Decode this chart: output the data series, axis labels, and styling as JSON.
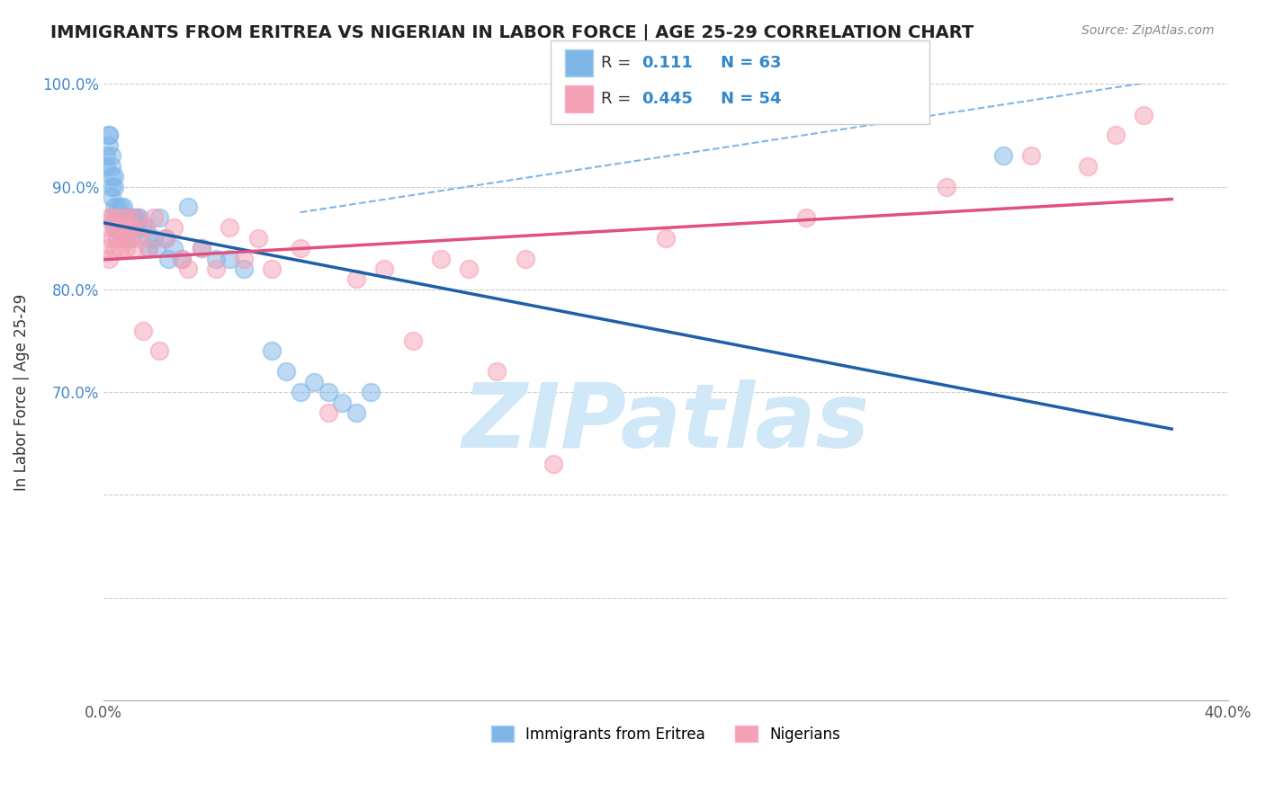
{
  "title": "IMMIGRANTS FROM ERITREA VS NIGERIAN IN LABOR FORCE | AGE 25-29 CORRELATION CHART",
  "source_text": "Source: ZipAtlas.com",
  "ylabel": "In Labor Force | Age 25-29",
  "xlim": [
    0.0,
    0.4
  ],
  "ylim": [
    0.4,
    1.0
  ],
  "blue_color": "#7EB6E8",
  "pink_color": "#F4A0B5",
  "blue_line_color": "#1E5FA8",
  "pink_line_color": "#E05080",
  "dashed_line_color": "#7EB6E8",
  "watermark_text": "ZIPatlas",
  "watermark_color": "#D0E8F8",
  "R_eritrea": 0.111,
  "N_eritrea": 63,
  "R_nigerian": 0.445,
  "N_nigerian": 54,
  "eritrea_x": [
    0.001,
    0.001,
    0.002,
    0.002,
    0.002,
    0.003,
    0.003,
    0.003,
    0.003,
    0.003,
    0.004,
    0.004,
    0.004,
    0.004,
    0.004,
    0.005,
    0.005,
    0.005,
    0.005,
    0.006,
    0.006,
    0.006,
    0.007,
    0.007,
    0.007,
    0.008,
    0.008,
    0.008,
    0.009,
    0.009,
    0.01,
    0.01,
    0.01,
    0.011,
    0.011,
    0.012,
    0.012,
    0.013,
    0.014,
    0.015,
    0.016,
    0.016,
    0.018,
    0.019,
    0.02,
    0.022,
    0.023,
    0.025,
    0.028,
    0.03,
    0.035,
    0.04,
    0.045,
    0.05,
    0.06,
    0.065,
    0.07,
    0.075,
    0.08,
    0.085,
    0.09,
    0.095,
    0.32
  ],
  "eritrea_y": [
    0.93,
    0.92,
    0.95,
    0.95,
    0.94,
    0.93,
    0.92,
    0.91,
    0.9,
    0.89,
    0.9,
    0.91,
    0.88,
    0.87,
    0.86,
    0.88,
    0.87,
    0.86,
    0.85,
    0.88,
    0.87,
    0.86,
    0.88,
    0.87,
    0.86,
    0.87,
    0.86,
    0.85,
    0.87,
    0.86,
    0.87,
    0.86,
    0.85,
    0.87,
    0.86,
    0.87,
    0.86,
    0.87,
    0.86,
    0.86,
    0.85,
    0.84,
    0.85,
    0.84,
    0.87,
    0.85,
    0.83,
    0.84,
    0.83,
    0.88,
    0.84,
    0.83,
    0.83,
    0.82,
    0.74,
    0.72,
    0.7,
    0.71,
    0.7,
    0.69,
    0.68,
    0.7,
    0.93
  ],
  "nigerian_x": [
    0.001,
    0.001,
    0.002,
    0.002,
    0.003,
    0.003,
    0.004,
    0.004,
    0.005,
    0.005,
    0.006,
    0.006,
    0.007,
    0.007,
    0.008,
    0.008,
    0.009,
    0.009,
    0.01,
    0.011,
    0.012,
    0.013,
    0.014,
    0.015,
    0.016,
    0.018,
    0.02,
    0.022,
    0.025,
    0.028,
    0.03,
    0.035,
    0.04,
    0.045,
    0.05,
    0.055,
    0.06,
    0.07,
    0.08,
    0.09,
    0.1,
    0.11,
    0.12,
    0.13,
    0.14,
    0.15,
    0.16,
    0.2,
    0.25,
    0.3,
    0.33,
    0.35,
    0.36,
    0.37
  ],
  "nigerian_y": [
    0.86,
    0.84,
    0.87,
    0.83,
    0.87,
    0.85,
    0.86,
    0.84,
    0.87,
    0.85,
    0.86,
    0.84,
    0.87,
    0.85,
    0.86,
    0.84,
    0.87,
    0.85,
    0.86,
    0.84,
    0.87,
    0.85,
    0.76,
    0.86,
    0.84,
    0.87,
    0.74,
    0.85,
    0.86,
    0.83,
    0.82,
    0.84,
    0.82,
    0.86,
    0.83,
    0.85,
    0.82,
    0.84,
    0.68,
    0.81,
    0.82,
    0.75,
    0.83,
    0.82,
    0.72,
    0.83,
    0.63,
    0.85,
    0.87,
    0.9,
    0.93,
    0.92,
    0.95,
    0.97
  ]
}
